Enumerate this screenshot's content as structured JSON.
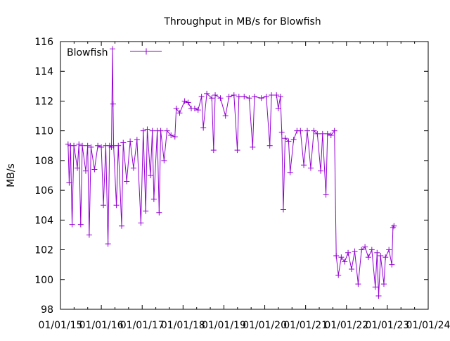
{
  "chart_data": {
    "type": "line",
    "title": "Throughput in MB/s for Blowfish",
    "xlabel": "",
    "ylabel": "MB/s",
    "ylim": [
      98,
      116
    ],
    "yticks": [
      98,
      100,
      102,
      104,
      106,
      108,
      110,
      112,
      114,
      116
    ],
    "xlim": [
      "2015-01-01",
      "2024-01-01"
    ],
    "xtick_labels": [
      "01/01/15",
      "01/01/16",
      "01/01/17",
      "01/01/18",
      "01/01/19",
      "01/01/20",
      "01/01/21",
      "01/01/22",
      "01/01/23",
      "01/01/24"
    ],
    "grid": false,
    "legend": "top-left",
    "color": "#9400d3",
    "series": [
      {
        "name": "Blowfish",
        "points": [
          [
            "2015-03-10",
            109.1
          ],
          [
            "2015-03-20",
            106.5
          ],
          [
            "2015-04-01",
            109.0
          ],
          [
            "2015-04-15",
            103.7
          ],
          [
            "2015-05-01",
            109.0
          ],
          [
            "2015-06-01",
            107.5
          ],
          [
            "2015-06-15",
            109.1
          ],
          [
            "2015-07-01",
            103.7
          ],
          [
            "2015-07-15",
            109.0
          ],
          [
            "2015-08-15",
            107.3
          ],
          [
            "2015-09-01",
            109.0
          ],
          [
            "2015-09-15",
            103.0
          ],
          [
            "2015-10-01",
            108.9
          ],
          [
            "2015-11-01",
            107.4
          ],
          [
            "2015-12-01",
            109.0
          ],
          [
            "2016-01-01",
            108.9
          ],
          [
            "2016-01-20",
            105.0
          ],
          [
            "2016-02-10",
            109.0
          ],
          [
            "2016-03-01",
            102.4
          ],
          [
            "2016-03-15",
            109.0
          ],
          [
            "2016-04-01",
            108.9
          ],
          [
            "2016-04-10",
            115.5
          ],
          [
            "2016-04-15",
            111.8
          ],
          [
            "2016-04-20",
            109.0
          ],
          [
            "2016-05-15",
            105.0
          ],
          [
            "2016-06-01",
            109.0
          ],
          [
            "2016-07-01",
            103.6
          ],
          [
            "2016-07-15",
            109.2
          ],
          [
            "2016-08-15",
            106.6
          ],
          [
            "2016-09-15",
            109.3
          ],
          [
            "2016-10-15",
            107.5
          ],
          [
            "2016-11-15",
            109.4
          ],
          [
            "2016-12-20",
            103.8
          ],
          [
            "2017-01-10",
            110.0
          ],
          [
            "2017-02-01",
            104.6
          ],
          [
            "2017-02-15",
            110.1
          ],
          [
            "2017-03-15",
            107.0
          ],
          [
            "2017-04-01",
            110.0
          ],
          [
            "2017-04-15",
            105.4
          ],
          [
            "2017-05-15",
            110.0
          ],
          [
            "2017-06-01",
            104.5
          ],
          [
            "2017-06-15",
            110.0
          ],
          [
            "2017-07-15",
            108.0
          ],
          [
            "2017-08-10",
            110.0
          ],
          [
            "2017-09-15",
            109.7
          ],
          [
            "2017-10-20",
            109.6
          ],
          [
            "2017-11-01",
            111.5
          ],
          [
            "2017-12-01",
            111.2
          ],
          [
            "2018-01-15",
            112.0
          ],
          [
            "2018-02-15",
            111.9
          ],
          [
            "2018-03-15",
            111.5
          ],
          [
            "2018-04-15",
            111.5
          ],
          [
            "2018-05-15",
            111.4
          ],
          [
            "2018-06-15",
            112.3
          ],
          [
            "2018-07-01",
            110.2
          ],
          [
            "2018-08-01",
            112.5
          ],
          [
            "2018-09-15",
            112.2
          ],
          [
            "2018-10-01",
            108.7
          ],
          [
            "2018-10-15",
            112.4
          ],
          [
            "2018-12-01",
            112.2
          ],
          [
            "2019-01-15",
            111.0
          ],
          [
            "2019-02-15",
            112.3
          ],
          [
            "2019-04-01",
            112.4
          ],
          [
            "2019-05-01",
            108.7
          ],
          [
            "2019-05-15",
            112.3
          ],
          [
            "2019-07-01",
            112.3
          ],
          [
            "2019-08-15",
            112.2
          ],
          [
            "2019-09-15",
            108.9
          ],
          [
            "2019-10-01",
            112.3
          ],
          [
            "2019-12-01",
            112.2
          ],
          [
            "2020-01-15",
            112.3
          ],
          [
            "2020-02-15",
            109.0
          ],
          [
            "2020-03-01",
            112.4
          ],
          [
            "2020-04-15",
            112.4
          ],
          [
            "2020-05-01",
            111.5
          ],
          [
            "2020-05-20",
            112.3
          ],
          [
            "2020-06-01",
            109.9
          ],
          [
            "2020-06-15",
            104.7
          ],
          [
            "2020-07-01",
            109.5
          ],
          [
            "2020-08-01",
            109.3
          ],
          [
            "2020-08-15",
            107.2
          ],
          [
            "2020-09-15",
            109.4
          ],
          [
            "2020-10-15",
            110.0
          ],
          [
            "2020-11-15",
            110.0
          ],
          [
            "2020-12-15",
            107.7
          ],
          [
            "2021-01-15",
            110.0
          ],
          [
            "2021-02-15",
            107.5
          ],
          [
            "2021-03-15",
            110.0
          ],
          [
            "2021-04-15",
            109.8
          ],
          [
            "2021-05-15",
            107.3
          ],
          [
            "2021-06-01",
            109.8
          ],
          [
            "2021-07-01",
            105.7
          ],
          [
            "2021-07-15",
            109.8
          ],
          [
            "2021-08-15",
            109.7
          ],
          [
            "2021-09-15",
            110.0
          ],
          [
            "2021-10-01",
            101.6
          ],
          [
            "2021-10-20",
            100.3
          ],
          [
            "2021-11-15",
            101.5
          ],
          [
            "2021-12-15",
            101.2
          ],
          [
            "2022-01-15",
            101.8
          ],
          [
            "2022-02-15",
            100.7
          ],
          [
            "2022-03-15",
            101.9
          ],
          [
            "2022-04-15",
            99.7
          ],
          [
            "2022-05-15",
            102.0
          ],
          [
            "2022-06-15",
            102.2
          ],
          [
            "2022-07-15",
            101.5
          ],
          [
            "2022-08-15",
            102.0
          ],
          [
            "2022-09-15",
            99.5
          ],
          [
            "2022-10-01",
            101.8
          ],
          [
            "2022-10-15",
            98.9
          ],
          [
            "2022-11-01",
            101.6
          ],
          [
            "2022-12-01",
            99.7
          ],
          [
            "2022-12-15",
            101.5
          ],
          [
            "2023-01-15",
            102.0
          ],
          [
            "2023-02-10",
            101.0
          ],
          [
            "2023-02-20",
            103.5
          ],
          [
            "2023-03-01",
            103.6
          ]
        ]
      }
    ]
  }
}
